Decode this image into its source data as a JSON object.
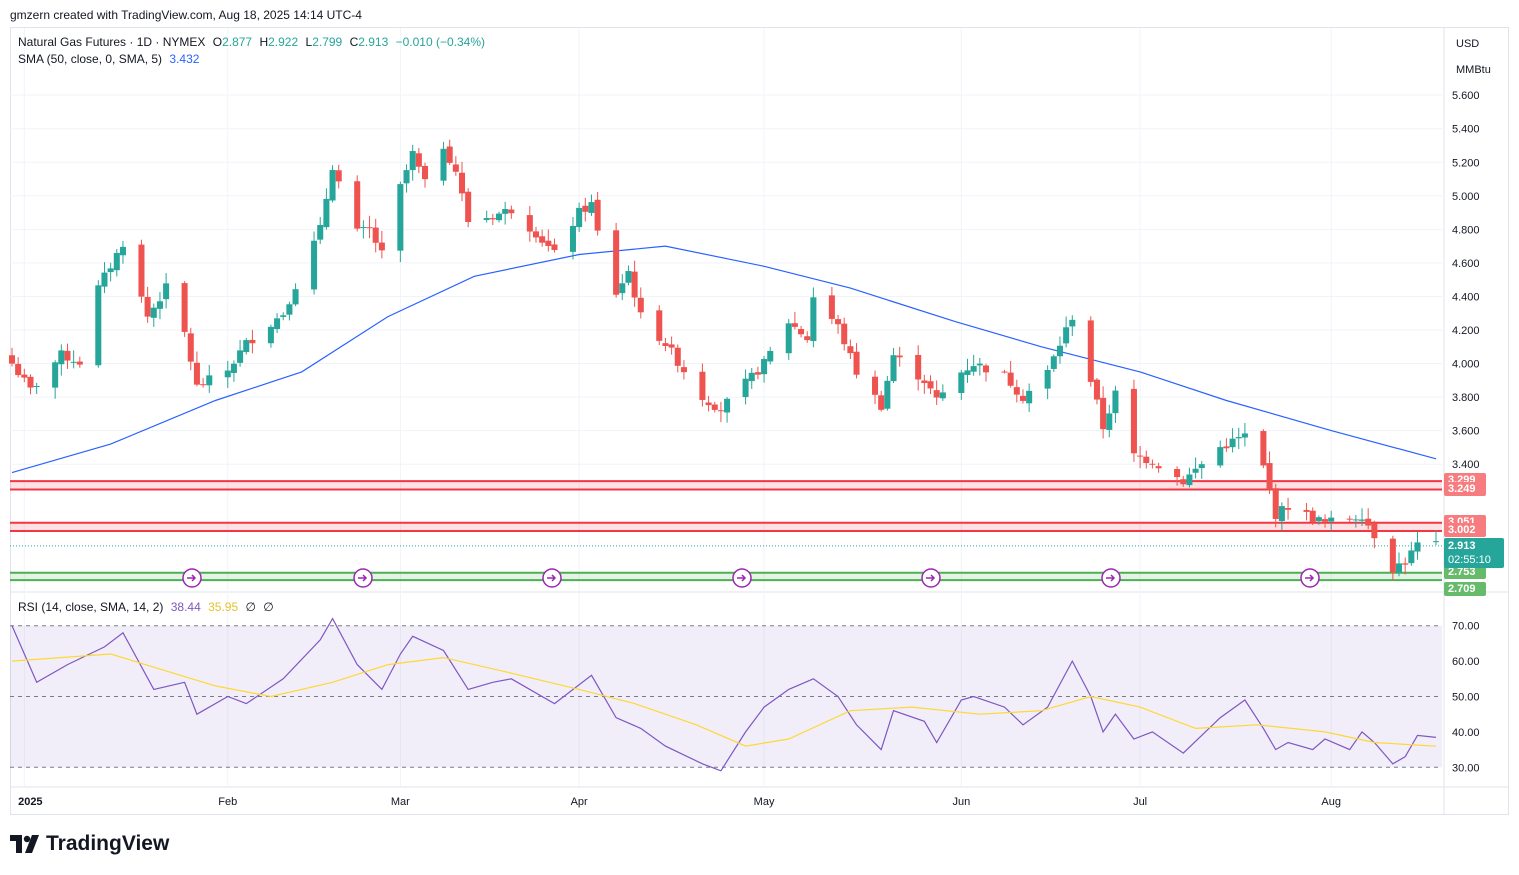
{
  "header": {
    "text": "gmzern created with TradingView.com, Aug 18, 2025 14:14 UTC-4"
  },
  "legend": {
    "symbol": "Natural Gas Futures · 1D · NYMEX",
    "o_label": "O",
    "o": "2.877",
    "h_label": "H",
    "h": "2.922",
    "l_label": "L",
    "l": "2.799",
    "c_label": "C",
    "c": "2.913",
    "change": "−0.010 (−0.34%)",
    "sma_label": "SMA (50, close, 0, SMA, 5)",
    "sma_value": "3.432",
    "rsi_label": "RSI (14, close, SMA, 14, 2)",
    "rsi_value": "38.44",
    "rsi_sma": "35.95",
    "rsi_extra1": "∅",
    "rsi_extra2": "∅"
  },
  "price_axis": {
    "currency": "USD",
    "unit": "MMBtu"
  },
  "brand": {
    "name": "TradingView"
  },
  "colors": {
    "up": "#26a69a",
    "down": "#ef5350",
    "sma": "#2962ff",
    "rsi": "#7e57c2",
    "rsi_sma": "#fdd835",
    "resistance": "#f23645",
    "support": "#4caf50"
  },
  "levels": [
    {
      "kind": "resistance",
      "top": "3.299",
      "bottom": "3.249"
    },
    {
      "kind": "resistance",
      "top": "3.051",
      "bottom": "3.002"
    },
    {
      "kind": "support",
      "top": "2.753",
      "bottom": "2.709"
    }
  ],
  "last": {
    "price": "2.913",
    "countdown": "02:55:10"
  },
  "chart_data": [
    {
      "type": "candlestick",
      "title": "Natural Gas Futures · 1D · NYMEX",
      "ylim": [
        2.65,
        5.75
      ],
      "y_ticks": [
        "5.600",
        "5.400",
        "5.200",
        "5.000",
        "4.800",
        "4.600",
        "4.400",
        "4.200",
        "4.000",
        "3.800",
        "3.600",
        "3.400"
      ],
      "x_ticks": [
        "2025",
        "Feb",
        "Mar",
        "Apr",
        "May",
        "Jun",
        "Jul",
        "Aug"
      ],
      "x_tick_dates": [
        "2025-01-01",
        "2025-02-03",
        "2025-03-03",
        "2025-04-01",
        "2025-05-01",
        "2025-06-02",
        "2025-07-01",
        "2025-08-01"
      ],
      "date_range": [
        "2024-12-30",
        "2025-08-18"
      ],
      "anchors": [
        {
          "date": "2024-12-30",
          "close": 4.0
        },
        {
          "date": "2025-01-02",
          "close": 3.84
        },
        {
          "date": "2025-01-07",
          "close": 4.05
        },
        {
          "date": "2025-01-10",
          "close": 4.01
        },
        {
          "date": "2025-01-13",
          "close": 4.45
        },
        {
          "date": "2025-01-16",
          "close": 4.65
        },
        {
          "date": "2025-01-17",
          "close": 4.72
        },
        {
          "date": "2025-01-21",
          "close": 4.28
        },
        {
          "date": "2025-01-24",
          "close": 4.45
        },
        {
          "date": "2025-01-27",
          "close": 4.18
        },
        {
          "date": "2025-01-29",
          "close": 3.86
        },
        {
          "date": "2025-02-03",
          "close": 3.96
        },
        {
          "date": "2025-02-06",
          "close": 4.12
        },
        {
          "date": "2025-02-12",
          "close": 4.3
        },
        {
          "date": "2025-02-18",
          "close": 4.8
        },
        {
          "date": "2025-02-20",
          "close": 5.18
        },
        {
          "date": "2025-02-24",
          "close": 4.78
        },
        {
          "date": "2025-02-26",
          "close": 4.8
        },
        {
          "date": "2025-02-28",
          "close": 4.65
        },
        {
          "date": "2025-03-03",
          "close": 5.05
        },
        {
          "date": "2025-03-05",
          "close": 5.25
        },
        {
          "date": "2025-03-07",
          "close": 5.07
        },
        {
          "date": "2025-03-10",
          "close": 5.3
        },
        {
          "date": "2025-03-12",
          "close": 5.15
        },
        {
          "date": "2025-03-14",
          "close": 4.85
        },
        {
          "date": "2025-03-18",
          "close": 4.88
        },
        {
          "date": "2025-03-21",
          "close": 4.92
        },
        {
          "date": "2025-03-25",
          "close": 4.78
        },
        {
          "date": "2025-03-28",
          "close": 4.65
        },
        {
          "date": "2025-04-01",
          "close": 4.9
        },
        {
          "date": "2025-04-03",
          "close": 4.95
        },
        {
          "date": "2025-04-04",
          "close": 4.78
        },
        {
          "date": "2025-04-07",
          "close": 4.42
        },
        {
          "date": "2025-04-09",
          "close": 4.55
        },
        {
          "date": "2025-04-11",
          "close": 4.28
        },
        {
          "date": "2025-04-15",
          "close": 4.12
        },
        {
          "date": "2025-04-21",
          "close": 3.8
        },
        {
          "date": "2025-04-24",
          "close": 3.73
        },
        {
          "date": "2025-04-28",
          "close": 3.88
        },
        {
          "date": "2025-05-01",
          "close": 4.0
        },
        {
          "date": "2025-05-05",
          "close": 4.25
        },
        {
          "date": "2025-05-08",
          "close": 4.15
        },
        {
          "date": "2025-05-09",
          "close": 4.4
        },
        {
          "date": "2025-05-13",
          "close": 4.22
        },
        {
          "date": "2025-05-16",
          "close": 3.95
        },
        {
          "date": "2025-05-20",
          "close": 3.75
        },
        {
          "date": "2025-05-22",
          "close": 4.05
        },
        {
          "date": "2025-05-27",
          "close": 3.9
        },
        {
          "date": "2025-05-29",
          "close": 3.78
        },
        {
          "date": "2025-06-02",
          "close": 3.95
        },
        {
          "date": "2025-06-04",
          "close": 4.0
        },
        {
          "date": "2025-06-09",
          "close": 3.93
        },
        {
          "date": "2025-06-12",
          "close": 3.8
        },
        {
          "date": "2025-06-16",
          "close": 3.95
        },
        {
          "date": "2025-06-19",
          "close": 4.2
        },
        {
          "date": "2025-06-20",
          "close": 4.28
        },
        {
          "date": "2025-06-23",
          "close": 3.9
        },
        {
          "date": "2025-06-25",
          "close": 3.62
        },
        {
          "date": "2025-06-27",
          "close": 3.82
        },
        {
          "date": "2025-06-30",
          "close": 3.45
        },
        {
          "date": "2025-07-03",
          "close": 3.42
        },
        {
          "date": "2025-07-08",
          "close": 3.3
        },
        {
          "date": "2025-07-14",
          "close": 3.5
        },
        {
          "date": "2025-07-18",
          "close": 3.57
        },
        {
          "date": "2025-07-21",
          "close": 3.38
        },
        {
          "date": "2025-07-23",
          "close": 3.1
        },
        {
          "date": "2025-07-25",
          "close": 3.15
        },
        {
          "date": "2025-07-29",
          "close": 3.08
        },
        {
          "date": "2025-07-31",
          "close": 3.05
        },
        {
          "date": "2025-08-04",
          "close": 3.08
        },
        {
          "date": "2025-08-06",
          "close": 3.1
        },
        {
          "date": "2025-08-08",
          "close": 2.98
        },
        {
          "date": "2025-08-11",
          "close": 2.78
        },
        {
          "date": "2025-08-13",
          "close": 2.82
        },
        {
          "date": "2025-08-15",
          "close": 2.92
        },
        {
          "date": "2025-08-18",
          "close": 2.913
        }
      ]
    },
    {
      "type": "line",
      "name": "SMA (50, close, 0, SMA, 5)",
      "points": [
        {
          "date": "2024-12-30",
          "value": 3.35
        },
        {
          "date": "2025-01-15",
          "value": 3.52
        },
        {
          "date": "2025-02-01",
          "value": 3.78
        },
        {
          "date": "2025-02-15",
          "value": 3.95
        },
        {
          "date": "2025-03-01",
          "value": 4.28
        },
        {
          "date": "2025-03-15",
          "value": 4.52
        },
        {
          "date": "2025-04-01",
          "value": 4.65
        },
        {
          "date": "2025-04-15",
          "value": 4.7
        },
        {
          "date": "2025-05-01",
          "value": 4.58
        },
        {
          "date": "2025-05-15",
          "value": 4.45
        },
        {
          "date": "2025-06-01",
          "value": 4.25
        },
        {
          "date": "2025-06-15",
          "value": 4.1
        },
        {
          "date": "2025-07-01",
          "value": 3.95
        },
        {
          "date": "2025-07-15",
          "value": 3.78
        },
        {
          "date": "2025-08-01",
          "value": 3.6
        },
        {
          "date": "2025-08-18",
          "value": 3.432
        }
      ]
    },
    {
      "type": "line",
      "name": "RSI (14, close, SMA, 14, 2)",
      "ylim": [
        25,
        75
      ],
      "y_ticks": [
        "70.00",
        "60.00",
        "50.00",
        "40.00",
        "30.00"
      ],
      "rsi": [
        {
          "date": "2024-12-30",
          "value": 70
        },
        {
          "date": "2025-01-03",
          "value": 54
        },
        {
          "date": "2025-01-08",
          "value": 59
        },
        {
          "date": "2025-01-14",
          "value": 64
        },
        {
          "date": "2025-01-17",
          "value": 68
        },
        {
          "date": "2025-01-22",
          "value": 52
        },
        {
          "date": "2025-01-27",
          "value": 54
        },
        {
          "date": "2025-01-29",
          "value": 45
        },
        {
          "date": "2025-02-03",
          "value": 50
        },
        {
          "date": "2025-02-06",
          "value": 48
        },
        {
          "date": "2025-02-12",
          "value": 55
        },
        {
          "date": "2025-02-18",
          "value": 66
        },
        {
          "date": "2025-02-20",
          "value": 72
        },
        {
          "date": "2025-02-24",
          "value": 59
        },
        {
          "date": "2025-02-28",
          "value": 52
        },
        {
          "date": "2025-03-03",
          "value": 62
        },
        {
          "date": "2025-03-05",
          "value": 67
        },
        {
          "date": "2025-03-10",
          "value": 63
        },
        {
          "date": "2025-03-14",
          "value": 52
        },
        {
          "date": "2025-03-18",
          "value": 54
        },
        {
          "date": "2025-03-21",
          "value": 55
        },
        {
          "date": "2025-03-28",
          "value": 48
        },
        {
          "date": "2025-04-03",
          "value": 56
        },
        {
          "date": "2025-04-07",
          "value": 44
        },
        {
          "date": "2025-04-11",
          "value": 41
        },
        {
          "date": "2025-04-15",
          "value": 36
        },
        {
          "date": "2025-04-21",
          "value": 31
        },
        {
          "date": "2025-04-24",
          "value": 29
        },
        {
          "date": "2025-04-28",
          "value": 40
        },
        {
          "date": "2025-05-01",
          "value": 47
        },
        {
          "date": "2025-05-05",
          "value": 52
        },
        {
          "date": "2025-05-09",
          "value": 55
        },
        {
          "date": "2025-05-13",
          "value": 50
        },
        {
          "date": "2025-05-16",
          "value": 42
        },
        {
          "date": "2025-05-20",
          "value": 35
        },
        {
          "date": "2025-05-22",
          "value": 46
        },
        {
          "date": "2025-05-27",
          "value": 43
        },
        {
          "date": "2025-05-29",
          "value": 37
        },
        {
          "date": "2025-06-02",
          "value": 49
        },
        {
          "date": "2025-06-04",
          "value": 50
        },
        {
          "date": "2025-06-09",
          "value": 47
        },
        {
          "date": "2025-06-12",
          "value": 42
        },
        {
          "date": "2025-06-16",
          "value": 47
        },
        {
          "date": "2025-06-20",
          "value": 60
        },
        {
          "date": "2025-06-23",
          "value": 50
        },
        {
          "date": "2025-06-25",
          "value": 40
        },
        {
          "date": "2025-06-27",
          "value": 45
        },
        {
          "date": "2025-06-30",
          "value": 38
        },
        {
          "date": "2025-07-03",
          "value": 40
        },
        {
          "date": "2025-07-08",
          "value": 34
        },
        {
          "date": "2025-07-14",
          "value": 44
        },
        {
          "date": "2025-07-18",
          "value": 49
        },
        {
          "date": "2025-07-21",
          "value": 41
        },
        {
          "date": "2025-07-23",
          "value": 35
        },
        {
          "date": "2025-07-25",
          "value": 37
        },
        {
          "date": "2025-07-29",
          "value": 35
        },
        {
          "date": "2025-07-31",
          "value": 38
        },
        {
          "date": "2025-08-04",
          "value": 35
        },
        {
          "date": "2025-08-06",
          "value": 40
        },
        {
          "date": "2025-08-08",
          "value": 37
        },
        {
          "date": "2025-08-11",
          "value": 31
        },
        {
          "date": "2025-08-13",
          "value": 33
        },
        {
          "date": "2025-08-15",
          "value": 39
        },
        {
          "date": "2025-08-18",
          "value": 38.44
        }
      ],
      "rsi_sma": [
        {
          "date": "2024-12-30",
          "value": 60
        },
        {
          "date": "2025-01-15",
          "value": 62
        },
        {
          "date": "2025-02-01",
          "value": 53
        },
        {
          "date": "2025-02-10",
          "value": 50
        },
        {
          "date": "2025-02-20",
          "value": 54
        },
        {
          "date": "2025-03-01",
          "value": 59
        },
        {
          "date": "2025-03-10",
          "value": 61
        },
        {
          "date": "2025-03-20",
          "value": 57
        },
        {
          "date": "2025-04-01",
          "value": 52
        },
        {
          "date": "2025-04-10",
          "value": 48
        },
        {
          "date": "2025-04-20",
          "value": 42
        },
        {
          "date": "2025-04-28",
          "value": 36
        },
        {
          "date": "2025-05-05",
          "value": 38
        },
        {
          "date": "2025-05-15",
          "value": 46
        },
        {
          "date": "2025-05-25",
          "value": 47
        },
        {
          "date": "2025-06-05",
          "value": 45
        },
        {
          "date": "2025-06-15",
          "value": 46
        },
        {
          "date": "2025-06-23",
          "value": 50
        },
        {
          "date": "2025-07-01",
          "value": 47
        },
        {
          "date": "2025-07-10",
          "value": 41
        },
        {
          "date": "2025-07-20",
          "value": 42
        },
        {
          "date": "2025-07-31",
          "value": 40
        },
        {
          "date": "2025-08-08",
          "value": 37
        },
        {
          "date": "2025-08-18",
          "value": 35.95
        }
      ]
    }
  ]
}
